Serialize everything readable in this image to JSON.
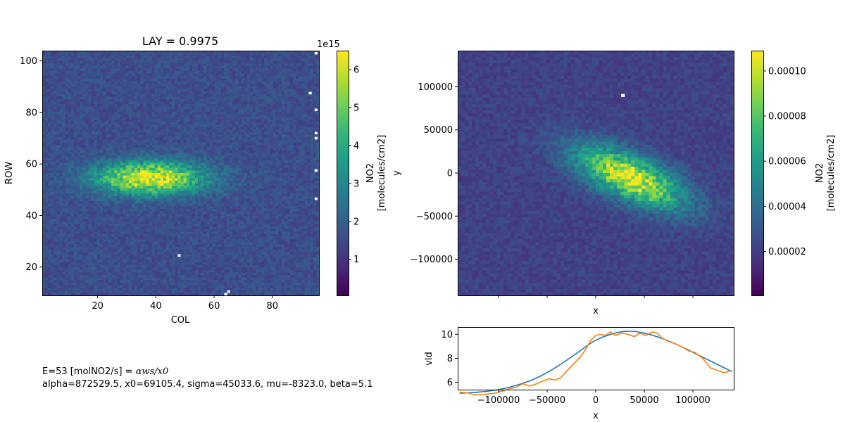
{
  "figure": {
    "annotation_line1_prefix": "E=53 [molNO2/s] = ",
    "annotation_line1_formula": "αws/x0",
    "annotation_line2": "alpha=872529.5, x0=69105.4, sigma=45033.6, mu=-8323.0, beta=5.1"
  },
  "colors": {
    "viridis": [
      "#440154",
      "#482878",
      "#3e4989",
      "#31688e",
      "#26828e",
      "#1f9e89",
      "#35b779",
      "#6ece58",
      "#b5de2b",
      "#fde725"
    ],
    "fit_line": "#1f77b4",
    "obs_line": "#ff7f0e",
    "missing": "#ffffff"
  },
  "chart_data": [
    {
      "id": "left-heatmap",
      "type": "heatmap",
      "title": "LAY = 0.9975",
      "xlabel": "COL",
      "ylabel": "ROW",
      "xlim": [
        1,
        96
      ],
      "ylim": [
        9,
        104
      ],
      "xticks": [
        "20",
        "40",
        "60",
        "80"
      ],
      "xtick_values": [
        20,
        40,
        60,
        80
      ],
      "yticks": [
        "20",
        "40",
        "60",
        "80",
        "100"
      ],
      "ytick_values": [
        20,
        40,
        60,
        80,
        100
      ],
      "grid": false,
      "plume": {
        "center_x": 38,
        "center_y": 54.5,
        "peak": 6.4,
        "background": 1.6,
        "sigma_along": 13,
        "sigma_across": 4.5,
        "angle_deg": 0
      },
      "missing_cells": [
        [
          95,
          103
        ],
        [
          93,
          87.5
        ],
        [
          95,
          81
        ],
        [
          95,
          72
        ],
        [
          95,
          70
        ],
        [
          95,
          57.5
        ],
        [
          95,
          46.5
        ],
        [
          48,
          24.5
        ],
        [
          64,
          9.5
        ],
        [
          65,
          10.5
        ]
      ],
      "colorbar": {
        "label": "NO2\n[molecules/cm2]",
        "label_line1": "NO2",
        "label_line2": "[molecules/cm2]",
        "offset_text": "1e15",
        "range": [
          0.05,
          6.5
        ],
        "ticks": [
          "1",
          "2",
          "3",
          "4",
          "5",
          "6"
        ],
        "tick_values": [
          1,
          2,
          3,
          4,
          5,
          6
        ]
      }
    },
    {
      "id": "right-heatmap",
      "type": "heatmap",
      "title": "",
      "xlabel": "x",
      "ylabel": "y",
      "xlim": [
        -142000,
        142000
      ],
      "ylim": [
        -142000,
        142000
      ],
      "xtick_values": [
        -100000,
        -50000,
        0,
        50000,
        100000
      ],
      "yticks": [
        "−100000",
        "−50000",
        "0",
        "50000",
        "100000"
      ],
      "ytick_values": [
        -100000,
        -50000,
        0,
        50000,
        100000
      ],
      "grid": false,
      "plume": {
        "center_x": 35000,
        "center_y": -5000,
        "peak": 0.000105,
        "background": 2.2e-05,
        "sigma_along": 42000,
        "sigma_across": 17000,
        "angle_deg": -28
      },
      "missing_cells": [
        [
          28000,
          90000
        ]
      ],
      "colorbar": {
        "label": "NO2\n[molecules/cm2]",
        "label_line1": "NO2",
        "label_line2": "[molecules/cm2]",
        "range": [
          5e-07,
          0.000109
        ],
        "ticks": [
          "0.00002",
          "0.00004",
          "0.00006",
          "0.00008",
          "0.00010"
        ],
        "tick_values": [
          2e-05,
          4e-05,
          6e-05,
          8e-05,
          0.0001
        ]
      }
    },
    {
      "id": "bottom-line",
      "type": "line",
      "title": "",
      "xlabel": "x",
      "ylabel": "vld",
      "xlim": [
        -142000,
        142000
      ],
      "ylim": [
        5.4,
        10.6
      ],
      "xticks": [
        "−100000",
        "−50000",
        "0",
        "50000",
        "100000"
      ],
      "xtick_values": [
        -100000,
        -50000,
        0,
        50000,
        100000
      ],
      "yticks": [
        "6",
        "8",
        "10"
      ],
      "ytick_values": [
        6,
        8,
        10
      ],
      "grid": false,
      "series": [
        {
          "role": "fit",
          "x": [
            -140000,
            -120000,
            -100000,
            -80000,
            -60000,
            -40000,
            -20000,
            0,
            20000,
            35000,
            50000,
            70000,
            90000,
            110000,
            130000,
            140000
          ],
          "values": [
            5.1,
            5.2,
            5.4,
            5.8,
            6.4,
            7.3,
            8.4,
            9.5,
            10.1,
            10.25,
            10.1,
            9.6,
            8.9,
            8.1,
            7.3,
            6.9
          ]
        },
        {
          "role": "observed",
          "x": [
            -140000,
            -130000,
            -125000,
            -115000,
            -105000,
            -95000,
            -88000,
            -82000,
            -75000,
            -68000,
            -62000,
            -55000,
            -48000,
            -42000,
            -36000,
            -28000,
            -22000,
            -15000,
            -10000,
            -5000,
            0,
            5000,
            10000,
            15000,
            20000,
            27000,
            33000,
            40000,
            45000,
            52000,
            58000,
            63000,
            68000,
            75000,
            82000,
            90000,
            96000,
            102000,
            110000,
            118000,
            125000,
            132000,
            140000
          ],
          "values": [
            5.2,
            5.1,
            4.95,
            5.0,
            5.1,
            5.3,
            5.5,
            5.6,
            5.9,
            5.7,
            5.85,
            6.1,
            6.3,
            6.2,
            6.4,
            7.1,
            7.6,
            8.2,
            8.8,
            9.5,
            9.9,
            10.0,
            9.9,
            10.2,
            9.9,
            10.1,
            10.0,
            9.8,
            10.1,
            9.9,
            10.2,
            10.1,
            9.7,
            9.4,
            9.2,
            8.9,
            8.6,
            8.5,
            8.0,
            7.2,
            7.0,
            6.8,
            7.0
          ]
        }
      ]
    }
  ]
}
